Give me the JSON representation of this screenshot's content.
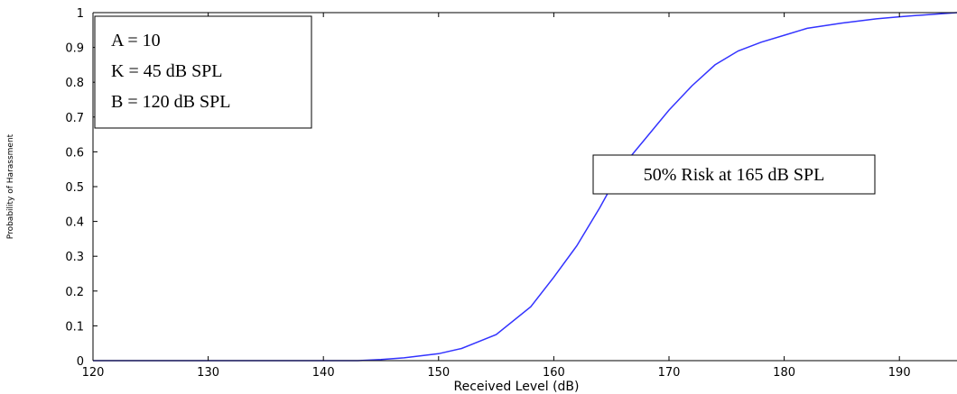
{
  "chart_data": {
    "type": "line",
    "title": "",
    "xlabel": "Received Level (dB)",
    "ylabel": "Probability of Harassment",
    "xlim": [
      120,
      195
    ],
    "ylim": [
      0,
      1
    ],
    "x_ticks": [
      "120",
      "130",
      "140",
      "150",
      "160",
      "170",
      "180",
      "190"
    ],
    "y_ticks": [
      "0",
      "0.1",
      "0.2",
      "0.3",
      "0.4",
      "0.5",
      "0.6",
      "0.7",
      "0.8",
      "0.9",
      "1"
    ],
    "grid": false,
    "series": [
      {
        "color": "#3333ff",
        "x": [
          120,
          130,
          140,
          143,
          145,
          147,
          150,
          152,
          155,
          158,
          160,
          162,
          164,
          165,
          166,
          168,
          170,
          172,
          174,
          176,
          178,
          180,
          182,
          185,
          188,
          190,
          192,
          195
        ],
        "y": [
          0,
          0,
          0,
          0.0,
          0.003,
          0.008,
          0.02,
          0.035,
          0.075,
          0.155,
          0.24,
          0.33,
          0.44,
          0.5,
          0.56,
          0.64,
          0.72,
          0.79,
          0.85,
          0.89,
          0.915,
          0.935,
          0.955,
          0.97,
          0.982,
          0.988,
          0.993,
          1.0
        ]
      }
    ],
    "params_box": {
      "lines": [
        "A = 10",
        "K = 45 dB SPL",
        "B = 120 dB SPL"
      ]
    },
    "annotation": "50% Risk at 165 dB SPL"
  }
}
